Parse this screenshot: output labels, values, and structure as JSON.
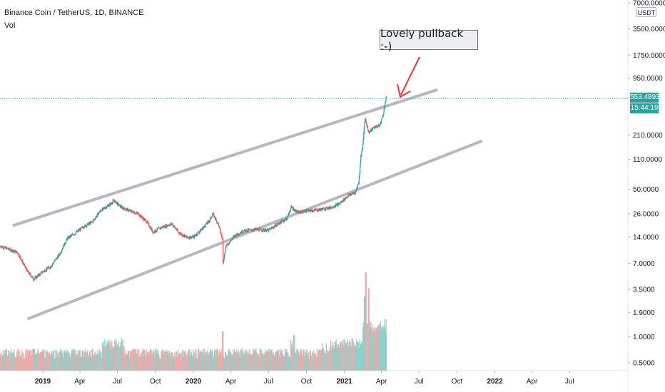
{
  "header": {
    "symbol_title": "Binance Coin / TetherUS, 1D, BINANCE",
    "volume_label": "Vol"
  },
  "price_axis": {
    "currency": "USDT",
    "last_price": "553.4893",
    "countdown": "15:44:19"
  },
  "annotation": {
    "text": "Lovely pullback :-)"
  },
  "colors": {
    "up": "#26a69a",
    "down": "#ef5350",
    "up_volume": "#8fd0c9",
    "down_volume": "#f5a8a6",
    "channel": "#b2b5be",
    "arrow": "#e53935",
    "last_price_line": "#26a69a"
  },
  "chart_data": {
    "type": "candlestick",
    "scale": "log",
    "title": "Binance Coin / TetherUS, 1D, BINANCE",
    "ylim": [
      0.44,
      8000
    ],
    "y_ticks": [
      {
        "label": "7000.0000",
        "value": 7000
      },
      {
        "label": "3500.0000",
        "value": 3500
      },
      {
        "label": "1750.0000",
        "value": 1750
      },
      {
        "label": "950.0000",
        "value": 950
      },
      {
        "label": "210.0000",
        "value": 210
      },
      {
        "label": "110.0000",
        "value": 110
      },
      {
        "label": "50.0000",
        "value": 50
      },
      {
        "label": "26.0000",
        "value": 26
      },
      {
        "label": "14.0000",
        "value": 14
      },
      {
        "label": "7.0000",
        "value": 7
      },
      {
        "label": "3.5000",
        "value": 3.5
      },
      {
        "label": "1.9000",
        "value": 1.9
      },
      {
        "label": "1.0000",
        "value": 1
      },
      {
        "label": "0.5000",
        "value": 0.5
      }
    ],
    "x_ticks": [
      {
        "label": "2019",
        "date": "2019-01-01",
        "bold": true
      },
      {
        "label": "Apr",
        "date": "2019-04-01"
      },
      {
        "label": "Jul",
        "date": "2019-07-01"
      },
      {
        "label": "Oct",
        "date": "2019-10-01"
      },
      {
        "label": "2020",
        "date": "2020-01-01",
        "bold": true
      },
      {
        "label": "Apr",
        "date": "2020-04-01"
      },
      {
        "label": "Jul",
        "date": "2020-07-01"
      },
      {
        "label": "Oct",
        "date": "2020-10-01"
      },
      {
        "label": "2021",
        "date": "2021-01-01",
        "bold": true
      },
      {
        "label": "Apr",
        "date": "2021-04-01"
      },
      {
        "label": "Jul",
        "date": "2021-07-01"
      },
      {
        "label": "Oct",
        "date": "2021-10-01"
      },
      {
        "label": "2022",
        "date": "2022-01-01",
        "bold": true
      },
      {
        "label": "Apr",
        "date": "2022-04-01"
      },
      {
        "label": "Jul",
        "date": "2022-07-01"
      }
    ],
    "price_path": [
      [
        "2018-09-20",
        11.0
      ],
      [
        "2018-10-10",
        10.2
      ],
      [
        "2018-11-01",
        9.3
      ],
      [
        "2018-11-25",
        5.6
      ],
      [
        "2018-12-10",
        4.6
      ],
      [
        "2019-01-01",
        5.6
      ],
      [
        "2019-01-20",
        6.4
      ],
      [
        "2019-02-10",
        8.8
      ],
      [
        "2019-03-01",
        13.5
      ],
      [
        "2019-03-20",
        15.5
      ],
      [
        "2019-04-10",
        18.5
      ],
      [
        "2019-05-01",
        21
      ],
      [
        "2019-05-20",
        28
      ],
      [
        "2019-06-15",
        34
      ],
      [
        "2019-06-22",
        37
      ],
      [
        "2019-07-10",
        31
      ],
      [
        "2019-08-01",
        28
      ],
      [
        "2019-08-20",
        26
      ],
      [
        "2019-09-10",
        21
      ],
      [
        "2019-09-25",
        16
      ],
      [
        "2019-10-15",
        18
      ],
      [
        "2019-11-10",
        20
      ],
      [
        "2019-11-25",
        16
      ],
      [
        "2019-12-15",
        14
      ],
      [
        "2020-01-01",
        14
      ],
      [
        "2020-01-20",
        17
      ],
      [
        "2020-02-10",
        22
      ],
      [
        "2020-02-17",
        26
      ],
      [
        "2020-03-01",
        20
      ],
      [
        "2020-03-12",
        13
      ],
      [
        "2020-03-13",
        7.2
      ],
      [
        "2020-03-20",
        11
      ],
      [
        "2020-04-10",
        14.5
      ],
      [
        "2020-05-01",
        16.5
      ],
      [
        "2020-06-01",
        17.2
      ],
      [
        "2020-07-01",
        16.8
      ],
      [
        "2020-07-25",
        20
      ],
      [
        "2020-08-15",
        23
      ],
      [
        "2020-08-25",
        31
      ],
      [
        "2020-09-10",
        27
      ],
      [
        "2020-10-01",
        28
      ],
      [
        "2020-11-01",
        29
      ],
      [
        "2020-12-01",
        31
      ],
      [
        "2020-12-20",
        34
      ],
      [
        "2021-01-10",
        42
      ],
      [
        "2021-01-28",
        46
      ],
      [
        "2021-02-05",
        60
      ],
      [
        "2021-02-10",
        120
      ],
      [
        "2021-02-15",
        160
      ],
      [
        "2021-02-19",
        300
      ],
      [
        "2021-02-21",
        320
      ],
      [
        "2021-03-01",
        225
      ],
      [
        "2021-03-15",
        260
      ],
      [
        "2021-03-28",
        270
      ],
      [
        "2021-04-05",
        360
      ],
      [
        "2021-04-12",
        560
      ],
      [
        "2021-04-13",
        553.4893
      ]
    ],
    "volume_bars": [
      [
        "2019-06-20",
        0.75
      ],
      [
        "2020-03-12",
        1.15
      ],
      [
        "2020-09-01",
        1.05
      ],
      [
        "2021-01-20",
        0.95
      ],
      [
        "2021-02-19",
        2.9
      ],
      [
        "2021-02-22",
        5.5
      ],
      [
        "2021-03-01",
        3.6
      ],
      [
        "2021-04-05",
        1.3
      ]
    ],
    "channel": {
      "upper": [
        [
          "2018-10-20",
          19
        ],
        [
          "2021-08-15",
          700
        ]
      ],
      "lower": [
        [
          "2018-11-25",
          1.6
        ],
        [
          "2021-12-01",
          180
        ]
      ]
    },
    "last_price": 553.4893
  }
}
